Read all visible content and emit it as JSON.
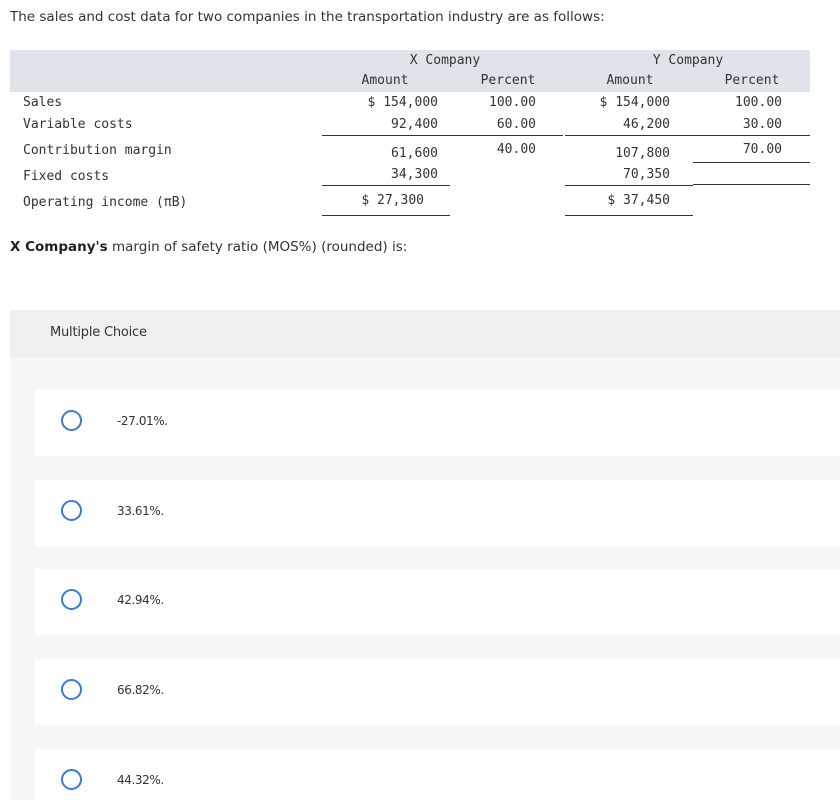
{
  "intro": "The sales and cost data for two companies in the transportation industry are as follows:",
  "table": {
    "company_x": "X Company",
    "company_y": "Y Company",
    "col_amount": "Amount",
    "col_percent": "Percent",
    "rows": [
      {
        "label": "Sales",
        "x_amount": "$ 154,000",
        "x_percent": "100.00",
        "y_amount": "$ 154,000",
        "y_percent": "100.00"
      },
      {
        "label": "Variable costs",
        "x_amount": "92,400",
        "x_percent": "60.00",
        "y_amount": "46,200",
        "y_percent": "30.00"
      },
      {
        "label": "Contribution margin",
        "x_amount": "61,600",
        "x_percent": "40.00",
        "y_amount": "107,800",
        "y_percent": "70.00"
      },
      {
        "label": "Fixed costs",
        "x_amount": "34,300",
        "x_percent": "",
        "y_amount": "70,350",
        "y_percent": ""
      },
      {
        "label": "Operating income (πB)",
        "x_amount": "$ 27,300",
        "x_percent": "",
        "y_amount": "$ 37,450",
        "y_percent": ""
      }
    ]
  },
  "question": {
    "bold": "X Company's",
    "rest": " margin of safety ratio (MOS%) (rounded) is:"
  },
  "multiple_choice": {
    "title": "Multiple Choice",
    "options": [
      "-27.01%.",
      "33.61%.",
      "42.94%.",
      "66.82%.",
      "44.32%."
    ]
  },
  "colors": {
    "header_band": "#dfe3ea",
    "radio_border": "#3a7bd5",
    "panel_bg": "#f7f7f7"
  }
}
